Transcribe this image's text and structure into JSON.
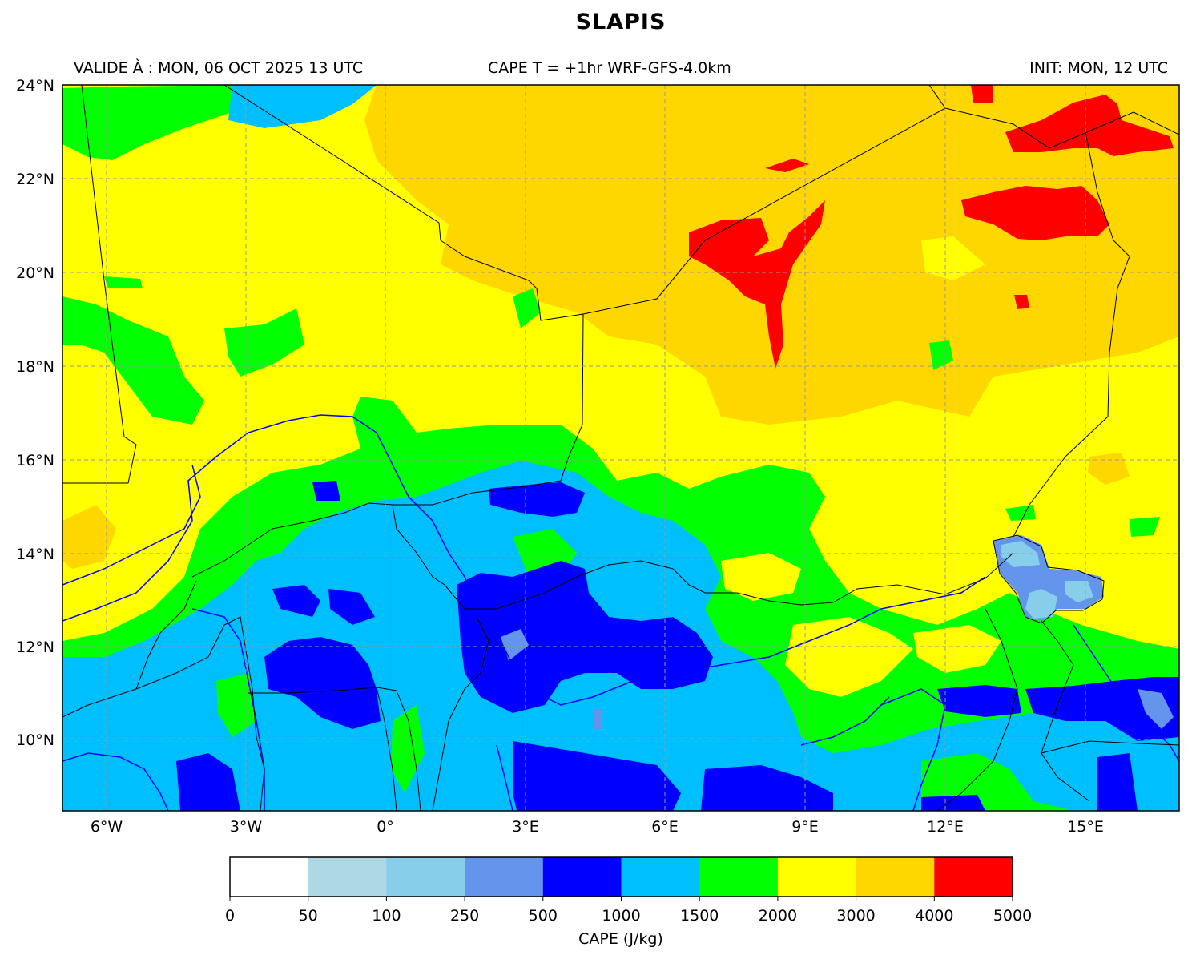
{
  "title": "SLAPIS",
  "header": {
    "valid": "VALIDE À : MON, 06 OCT 2025 13 UTC",
    "center": "CAPE T = +1hr WRF-GFS-4.0km",
    "init": "INIT: MON, 12 UTC"
  },
  "map": {
    "lon_range": [
      -7,
      17
    ],
    "lat_range": [
      8.5,
      24
    ],
    "lat_ticks": [
      "24°N",
      "22°N",
      "20°N",
      "18°N",
      "16°N",
      "14°N",
      "12°N",
      "10°N"
    ],
    "lon_ticks": [
      "6°W",
      "3°W",
      "0°",
      "3°E",
      "6°E",
      "9°E",
      "12°E",
      "15°E"
    ],
    "gridlines": true
  },
  "colorbar": {
    "label": "CAPE (J/kg)",
    "levels": [
      "0",
      "50",
      "100",
      "250",
      "500",
      "1000",
      "1500",
      "2000",
      "3000",
      "4000",
      "5000"
    ],
    "colors": [
      "#ffffff",
      "#add8e6",
      "#87ceeb",
      "#6495ed",
      "#0000ff",
      "#00bfff",
      "#00ff00",
      "#ffff00",
      "#ffd700",
      "#ff0000"
    ]
  }
}
